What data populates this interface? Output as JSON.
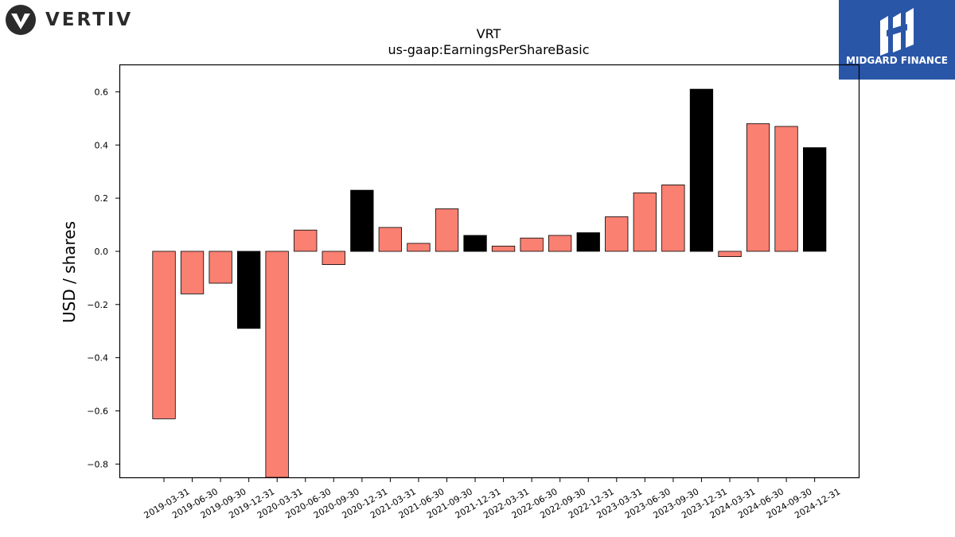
{
  "header": {
    "left_logo": {
      "text": "VERTIV"
    },
    "right_logo": {
      "text": "MIDGARD FINANCE",
      "color": "#2a56a8"
    }
  },
  "colors": {
    "positive_default": "#fa8072",
    "highlight": "#000000"
  },
  "chart_data": {
    "type": "bar",
    "title": "VRT",
    "subtitle": "us-gaap:EarningsPerShareBasic",
    "xlabel": "",
    "ylabel": "USD / shares",
    "ylim": [
      -0.85,
      0.7
    ],
    "yticks": [
      -0.8,
      -0.6,
      -0.4,
      -0.2,
      0.0,
      0.2,
      0.4,
      0.6
    ],
    "ytick_labels": [
      "−0.8",
      "−0.6",
      "−0.4",
      "−0.2",
      "0.0",
      "0.2",
      "0.4",
      "0.6"
    ],
    "grid": false,
    "categories": [
      "2019-03-31",
      "2019-06-30",
      "2019-09-30",
      "2019-12-31",
      "2020-03-31",
      "2020-06-30",
      "2020-09-30",
      "2020-12-31",
      "2021-03-31",
      "2021-06-30",
      "2021-09-30",
      "2021-12-31",
      "2022-03-31",
      "2022-06-30",
      "2022-09-30",
      "2022-12-31",
      "2023-03-31",
      "2023-06-30",
      "2023-09-30",
      "2023-12-31",
      "2024-03-31",
      "2024-06-30",
      "2024-09-30",
      "2024-12-31"
    ],
    "values": [
      -0.63,
      -0.16,
      -0.12,
      -0.29,
      -0.87,
      0.08,
      -0.05,
      0.23,
      0.09,
      0.03,
      0.16,
      0.06,
      0.02,
      0.05,
      0.06,
      0.07,
      0.13,
      0.22,
      0.25,
      0.61,
      -0.02,
      0.48,
      0.47,
      0.39
    ],
    "bar_colors": [
      "#fa8072",
      "#fa8072",
      "#fa8072",
      "#000000",
      "#fa8072",
      "#fa8072",
      "#fa8072",
      "#000000",
      "#fa8072",
      "#fa8072",
      "#fa8072",
      "#000000",
      "#fa8072",
      "#fa8072",
      "#fa8072",
      "#000000",
      "#fa8072",
      "#fa8072",
      "#fa8072",
      "#000000",
      "#fa8072",
      "#fa8072",
      "#fa8072",
      "#000000"
    ]
  }
}
